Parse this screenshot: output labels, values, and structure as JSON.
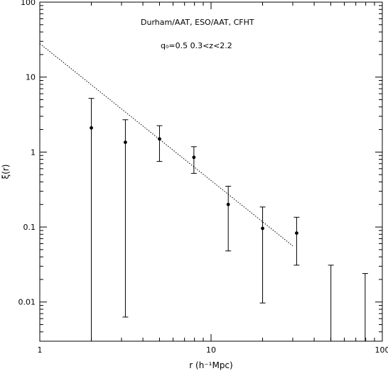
{
  "chart_data": {
    "type": "scatter",
    "title": "",
    "xlabel": "r (h⁻¹Mpc)",
    "ylabel": "ξ(r)",
    "xscale": "log",
    "yscale": "log",
    "xlim": [
      1,
      100
    ],
    "ylim": [
      0.003,
      100
    ],
    "x_ticks": [
      {
        "value": 1,
        "label": "1"
      },
      {
        "value": 10,
        "label": "10"
      },
      {
        "value": 100,
        "label": "100"
      }
    ],
    "y_ticks": [
      {
        "value": 0.01,
        "label": "0.01"
      },
      {
        "value": 0.1,
        "label": "0.1"
      },
      {
        "value": 1,
        "label": "1"
      },
      {
        "value": 10,
        "label": "10"
      },
      {
        "value": 100,
        "label": "100"
      }
    ],
    "annotations": [
      "Durham/AAT, ESO/AAT, CFHT",
      "q₀=0.5  0.3<z<2.2"
    ],
    "points": [
      {
        "x": 2.0,
        "y": 2.1,
        "y_low": 0.003,
        "y_high": 5.2
      },
      {
        "x": 3.16,
        "y": 1.35,
        "y_low": 0.0063,
        "y_high": 2.7
      },
      {
        "x": 5.0,
        "y": 1.5,
        "y_low": 0.75,
        "y_high": 2.25
      },
      {
        "x": 7.94,
        "y": 0.85,
        "y_low": 0.52,
        "y_high": 1.18
      },
      {
        "x": 12.6,
        "y": 0.2,
        "y_low": 0.048,
        "y_high": 0.35
      },
      {
        "x": 20.0,
        "y": 0.096,
        "y_low": 0.0097,
        "y_high": 0.185
      },
      {
        "x": 31.6,
        "y": 0.083,
        "y_low": 0.031,
        "y_high": 0.135
      },
      {
        "x": 50.1,
        "y": null,
        "y_low": 0.003,
        "y_high": 0.031
      },
      {
        "x": 79.4,
        "y": null,
        "y_low": 0.003,
        "y_high": 0.024
      }
    ],
    "fit_line": {
      "x": [
        1,
        30
      ],
      "y": [
        28,
        0.056
      ],
      "style": "dotted"
    },
    "grid": false
  }
}
